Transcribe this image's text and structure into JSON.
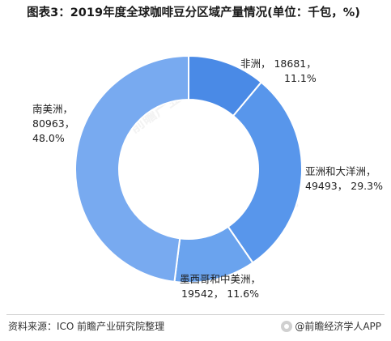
{
  "title": "图表3：2019年度全球咖啡豆分区域产量情况(单位：千包，%)",
  "chart_data": {
    "type": "pie",
    "donut": true,
    "title": "图表3：2019年度全球咖啡豆分区域产量情况(单位：千包，%)",
    "slices": [
      {
        "name": "非洲",
        "value": 18681,
        "percent": "11.1%",
        "color": "#4a8ae6"
      },
      {
        "name": "亚洲和大洋洲",
        "value": 49493,
        "percent": "29.3%",
        "color": "#5896eb"
      },
      {
        "name": "墨西哥和中美洲",
        "value": 19542,
        "percent": "11.6%",
        "color": "#6aa3ee"
      },
      {
        "name": "南美洲",
        "value": 80963,
        "percent": "48.0%",
        "color": "#78aaf0"
      }
    ],
    "labels": [
      {
        "line1": "非洲， 18681，",
        "line2": "11.1%"
      },
      {
        "line1": "亚洲和大洋洲，",
        "line2": "49493， 29.3%"
      },
      {
        "line1": "墨西哥和中美洲，",
        "line2": "19542， 11.6%"
      },
      {
        "line1": "南美洲，",
        "line2": "80963，",
        "line3": "48.0%"
      }
    ]
  },
  "watermark": "前瞻产业研究院",
  "footer": {
    "source": "资料来源：ICO 前瞻产业研究院整理",
    "brand": "@前瞻经济学人APP"
  }
}
